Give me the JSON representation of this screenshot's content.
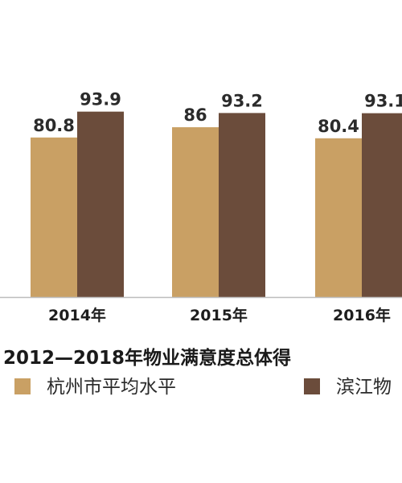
{
  "chart_data": {
    "type": "bar",
    "title": "2012—2018年物业满意度总体得",
    "categories": [
      "2014年",
      "2015年",
      "2016年"
    ],
    "series": [
      {
        "name": "杭州市平均水平",
        "color": "#C9A064",
        "values": [
          80.8,
          86,
          80.4
        ]
      },
      {
        "name": "滨江物",
        "color": "#6B4C3B",
        "values": [
          93.9,
          93.2,
          93.1
        ]
      }
    ],
    "data_labels": [
      [
        "80.8",
        "86",
        "80.4"
      ],
      [
        "93.9",
        "93.2",
        "93.1"
      ]
    ],
    "legend": "bottom",
    "grid": false
  }
}
